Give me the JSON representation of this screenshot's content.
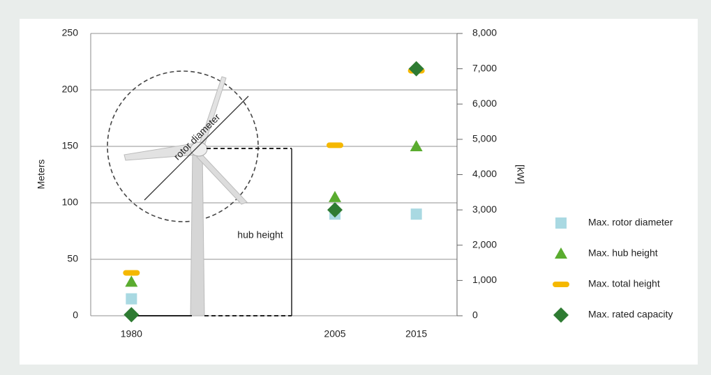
{
  "chart_data": {
    "type": "scatter",
    "x": [
      1980,
      2005,
      2015
    ],
    "xlim": [
      1975,
      2020
    ],
    "xticks": [
      1980,
      2005,
      2015
    ],
    "ylim": [
      0,
      250
    ],
    "yticks": [
      0,
      50,
      100,
      150,
      200,
      250
    ],
    "y2lim": [
      0,
      8000
    ],
    "y2ticks": [
      0,
      {
        "value": 1000,
        "label": "1,000"
      },
      {
        "value": 2000,
        "label": "2,000"
      },
      {
        "value": 3000,
        "label": "3,000"
      },
      {
        "value": 4000,
        "label": "4,000"
      },
      {
        "value": 5000,
        "label": "5,000"
      },
      {
        "value": 6000,
        "label": "6,000"
      },
      {
        "value": 7000,
        "label": "7,000"
      },
      {
        "value": 8000,
        "label": "8,000"
      }
    ],
    "ylabel": "Meters",
    "y2label": "[kW]",
    "grid": true,
    "legend": "right",
    "annotations": [
      "rotor diameter",
      "hub height"
    ],
    "series": [
      {
        "name": "Max. rotor diameter",
        "color": "#a9d9e2",
        "marker": "square",
        "values": [
          15,
          90,
          90
        ]
      },
      {
        "name": "Max. hub height",
        "color": "#5aac2f",
        "marker": "triangle",
        "values": [
          30,
          105,
          150
        ]
      },
      {
        "name": "Max. total height",
        "color": "#f5b800",
        "marker": "dash",
        "values": [
          38,
          151,
          217
        ]
      },
      {
        "name": "Max. rated capacity",
        "color": "#2e7b32",
        "marker": "diamond",
        "axis": "y2",
        "values": [
          30,
          3000,
          7000
        ]
      }
    ]
  }
}
